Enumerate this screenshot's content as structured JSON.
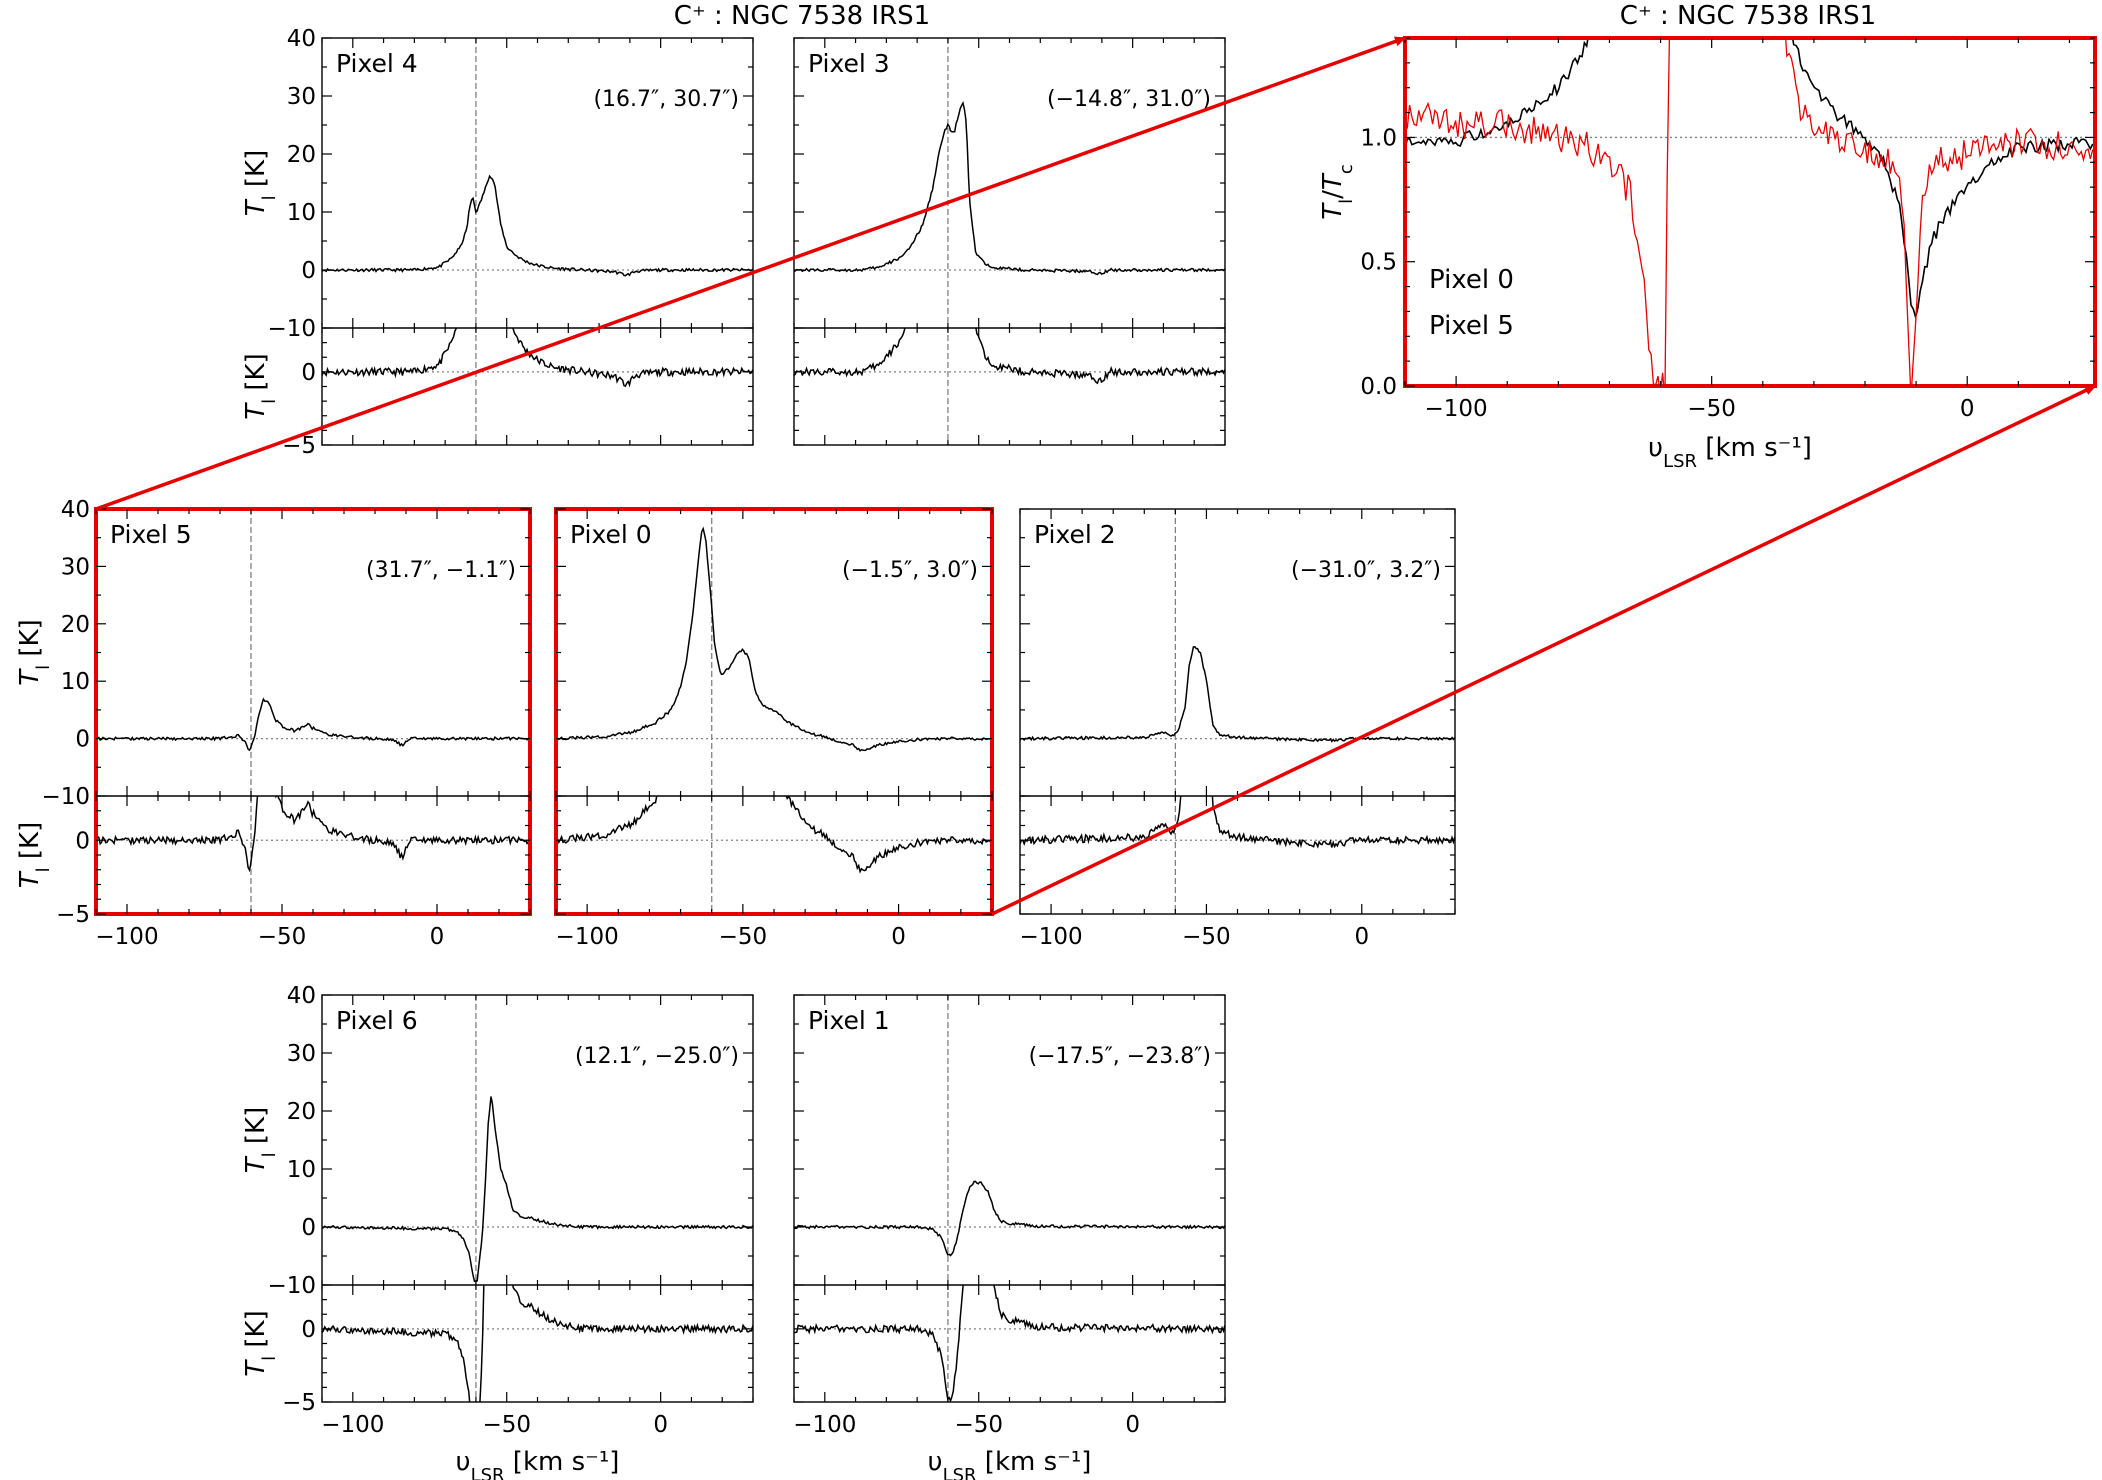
{
  "figure_title": "C⁺ : NGC 7538 IRS1",
  "inset_title": "C⁺ : NGC 7538 IRS1",
  "xlabel_prefix": "υ",
  "xlabel_sub": "LSR",
  "xlabel_suffix": " [km s⁻¹]",
  "ylabel_T": "T",
  "ylabel_sub": "l",
  "ylabel_unit": " [K]",
  "inset_ylabel_num": "T",
  "inset_ylabel_den": "T",
  "inset_ylabel_sub_num": "l",
  "inset_ylabel_sub_den": "c",
  "colors": {
    "line": "#000000",
    "highlight": "#e60000",
    "guide": "#808080"
  },
  "chart_data": [
    {
      "type": "line",
      "name": "Pixel 4",
      "offset": "(16.7″, 30.7″)",
      "highlight": false,
      "xlim": [
        -110,
        30
      ],
      "ylim_top": [
        -10,
        40
      ],
      "ylim_bottom": [
        -5,
        3
      ],
      "xticks": [
        -100,
        -50,
        0
      ],
      "yticks_top": [
        -10,
        0,
        10,
        20,
        30,
        40
      ],
      "yticks_bottom": [
        -5,
        0
      ],
      "vline": -60,
      "profile": [
        [
          -110,
          0
        ],
        [
          -80,
          0
        ],
        [
          -72,
          0.5
        ],
        [
          -68,
          2
        ],
        [
          -65,
          4
        ],
        [
          -63,
          7
        ],
        [
          -62,
          11
        ],
        [
          -61,
          12.5
        ],
        [
          -60,
          10
        ],
        [
          -59,
          11
        ],
        [
          -57,
          14
        ],
        [
          -55.5,
          16.5
        ],
        [
          -54,
          15
        ],
        [
          -52,
          8
        ],
        [
          -50,
          4
        ],
        [
          -47,
          2.5
        ],
        [
          -44,
          1.5
        ],
        [
          -40,
          0.8
        ],
        [
          -35,
          0.3
        ],
        [
          -25,
          0
        ],
        [
          -15,
          -0.3
        ],
        [
          -11,
          -0.9
        ],
        [
          -8,
          -0.2
        ],
        [
          0,
          0
        ],
        [
          30,
          0
        ]
      ]
    },
    {
      "type": "line",
      "name": "Pixel 3",
      "offset": "(−14.8″, 31.0″)",
      "highlight": false,
      "xlim": [
        -110,
        30
      ],
      "ylim_top": [
        -10,
        40
      ],
      "ylim_bottom": [
        -5,
        3
      ],
      "xticks": [
        -100,
        -50,
        0
      ],
      "yticks_top": [
        -10,
        0,
        10,
        20,
        30,
        40
      ],
      "yticks_bottom": [
        -5,
        0
      ],
      "vline": -60,
      "profile": [
        [
          -110,
          0
        ],
        [
          -88,
          0
        ],
        [
          -82,
          0.5
        ],
        [
          -76,
          2
        ],
        [
          -72,
          4
        ],
        [
          -68,
          8
        ],
        [
          -65,
          14
        ],
        [
          -63,
          20
        ],
        [
          -61,
          24
        ],
        [
          -60,
          25
        ],
        [
          -59,
          24
        ],
        [
          -58,
          23.5
        ],
        [
          -56.5,
          27
        ],
        [
          -55,
          29
        ],
        [
          -54,
          25
        ],
        [
          -53,
          12
        ],
        [
          -51,
          3
        ],
        [
          -48,
          1
        ],
        [
          -44,
          0.4
        ],
        [
          -35,
          0
        ],
        [
          -15,
          -0.2
        ],
        [
          -11,
          -0.6
        ],
        [
          -7,
          0
        ],
        [
          30,
          0
        ]
      ]
    },
    {
      "type": "line",
      "name": "Pixel 5",
      "offset": "(31.7″, −1.1″)",
      "highlight": true,
      "xlim": [
        -110,
        30
      ],
      "ylim_top": [
        -10,
        40
      ],
      "ylim_bottom": [
        -5,
        3
      ],
      "xticks": [
        -100,
        -50,
        0
      ],
      "yticks_top": [
        -10,
        0,
        10,
        20,
        30,
        40
      ],
      "yticks_bottom": [
        -5,
        0
      ],
      "vline": -60,
      "profile": [
        [
          -110,
          0
        ],
        [
          -70,
          0
        ],
        [
          -64,
          0.5
        ],
        [
          -62,
          -0.5
        ],
        [
          -60.5,
          -2.2
        ],
        [
          -59,
          0
        ],
        [
          -57.5,
          4
        ],
        [
          -56,
          6.8
        ],
        [
          -54,
          6
        ],
        [
          -52,
          3.2
        ],
        [
          -49,
          1.8
        ],
        [
          -46,
          1.4
        ],
        [
          -44,
          1.8
        ],
        [
          -42,
          2.6
        ],
        [
          -40,
          1.8
        ],
        [
          -36,
          0.8
        ],
        [
          -30,
          0.3
        ],
        [
          -20,
          0
        ],
        [
          -14,
          -0.2
        ],
        [
          -11,
          -1.3
        ],
        [
          -9,
          0
        ],
        [
          0,
          0
        ],
        [
          30,
          0
        ]
      ]
    },
    {
      "type": "line",
      "name": "Pixel 0",
      "offset": "(−1.5″, 3.0″)",
      "highlight": true,
      "xlim": [
        -110,
        30
      ],
      "ylim_top": [
        -10,
        40
      ],
      "ylim_bottom": [
        -5,
        3
      ],
      "xticks": [
        -100,
        -50,
        0
      ],
      "yticks_top": [
        -10,
        0,
        10,
        20,
        30,
        40
      ],
      "yticks_bottom": [
        -5,
        0
      ],
      "vline": -60,
      "profile": [
        [
          -110,
          0
        ],
        [
          -95,
          0.3
        ],
        [
          -85,
          1.2
        ],
        [
          -78,
          2.8
        ],
        [
          -73,
          5
        ],
        [
          -70,
          9
        ],
        [
          -68,
          14
        ],
        [
          -66,
          22
        ],
        [
          -64.5,
          30
        ],
        [
          -63,
          37
        ],
        [
          -62,
          35
        ],
        [
          -60.5,
          26
        ],
        [
          -59,
          16
        ],
        [
          -57,
          11
        ],
        [
          -55,
          12
        ],
        [
          -52,
          14.5
        ],
        [
          -50,
          15.5
        ],
        [
          -48,
          14
        ],
        [
          -46,
          8
        ],
        [
          -44,
          6
        ],
        [
          -42,
          5.5
        ],
        [
          -40,
          5
        ],
        [
          -36,
          3
        ],
        [
          -30,
          1.2
        ],
        [
          -22,
          0
        ],
        [
          -15,
          -1
        ],
        [
          -12,
          -2.2
        ],
        [
          -10,
          -2
        ],
        [
          -6,
          -1
        ],
        [
          0,
          -0.5
        ],
        [
          10,
          0
        ],
        [
          30,
          0
        ]
      ]
    },
    {
      "type": "line",
      "name": "Pixel 2",
      "offset": "(−31.0″, 3.2″)",
      "highlight": false,
      "xlim": [
        -110,
        30
      ],
      "ylim_top": [
        -10,
        40
      ],
      "ylim_bottom": [
        -5,
        3
      ],
      "xticks": [
        -100,
        -50,
        0
      ],
      "yticks_top": [
        -10,
        0,
        10,
        20,
        30,
        40
      ],
      "yticks_bottom": [
        -5,
        0
      ],
      "vline": -60,
      "profile": [
        [
          -110,
          0
        ],
        [
          -70,
          0.2
        ],
        [
          -66,
          0.8
        ],
        [
          -63,
          1.2
        ],
        [
          -61,
          0.4
        ],
        [
          -59,
          1.5
        ],
        [
          -57,
          5
        ],
        [
          -55.5,
          13
        ],
        [
          -54,
          16.3
        ],
        [
          -52,
          15
        ],
        [
          -50,
          10
        ],
        [
          -48,
          2.5
        ],
        [
          -46,
          0.8
        ],
        [
          -42,
          0.3
        ],
        [
          -30,
          0
        ],
        [
          -12,
          -0.3
        ],
        [
          0,
          0
        ],
        [
          30,
          0
        ]
      ]
    },
    {
      "type": "line",
      "name": "Pixel 6",
      "offset": "(12.1″, −25.0″)",
      "highlight": false,
      "xlim": [
        -110,
        30
      ],
      "ylim_top": [
        -10,
        40
      ],
      "ylim_bottom": [
        -5,
        3
      ],
      "xticks": [
        -100,
        -50,
        0
      ],
      "yticks_top": [
        -10,
        0,
        10,
        20,
        30,
        40
      ],
      "yticks_bottom": [
        -5,
        0
      ],
      "vline": -60,
      "profile": [
        [
          -110,
          0
        ],
        [
          -70,
          -0.3
        ],
        [
          -66,
          -0.8
        ],
        [
          -64,
          -2
        ],
        [
          -62,
          -5
        ],
        [
          -60.5,
          -9.5
        ],
        [
          -59.5,
          -9
        ],
        [
          -58,
          -2
        ],
        [
          -57,
          7
        ],
        [
          -56,
          18
        ],
        [
          -55,
          23
        ],
        [
          -54,
          18
        ],
        [
          -52,
          10
        ],
        [
          -50,
          7
        ],
        [
          -48,
          3
        ],
        [
          -45,
          1.5
        ],
        [
          -43,
          1.8
        ],
        [
          -40,
          1.2
        ],
        [
          -35,
          0.5
        ],
        [
          -25,
          0
        ],
        [
          30,
          0
        ]
      ]
    },
    {
      "type": "line",
      "name": "Pixel 1",
      "offset": "(−17.5″, −23.8″)",
      "highlight": false,
      "xlim": [
        -110,
        30
      ],
      "ylim_top": [
        -10,
        40
      ],
      "ylim_bottom": [
        -5,
        3
      ],
      "xticks": [
        -100,
        -50,
        0
      ],
      "yticks_top": [
        -10,
        0,
        10,
        20,
        30,
        40
      ],
      "yticks_bottom": [
        -5,
        0
      ],
      "vline": -60,
      "profile": [
        [
          -110,
          0
        ],
        [
          -70,
          0
        ],
        [
          -65,
          -0.3
        ],
        [
          -62,
          -2
        ],
        [
          -60,
          -5
        ],
        [
          -58.5,
          -4.6
        ],
        [
          -57,
          -2
        ],
        [
          -55,
          3
        ],
        [
          -53,
          7
        ],
        [
          -51,
          7.8
        ],
        [
          -49,
          7.5
        ],
        [
          -47,
          6
        ],
        [
          -45,
          3
        ],
        [
          -43,
          1
        ],
        [
          -40,
          0.6
        ],
        [
          -30,
          0.1
        ],
        [
          30,
          0
        ]
      ]
    },
    {
      "type": "line",
      "name": "Inset: T_l/T_c",
      "highlight": true,
      "xlim": [
        -110,
        25
      ],
      "ylim": [
        0,
        1.4
      ],
      "xticks": [
        -100,
        -50,
        0
      ],
      "yticks": [
        0.0,
        0.5,
        1.0
      ],
      "hline": 1.0,
      "series": [
        {
          "name": "Pixel 0",
          "color": "#000000",
          "profile": [
            [
              -110,
              0.98
            ],
            [
              -100,
              0.98
            ],
            [
              -95,
              1.02
            ],
            [
              -90,
              1.05
            ],
            [
              -85,
              1.12
            ],
            [
              -80,
              1.2
            ],
            [
              -76,
              1.32
            ],
            [
              -73,
              1.45
            ],
            [
              -35,
              1.45
            ],
            [
              -32,
              1.28
            ],
            [
              -30,
              1.2
            ],
            [
              -25,
              1.08
            ],
            [
              -20,
              1.0
            ],
            [
              -16,
              0.9
            ],
            [
              -13,
              0.7
            ],
            [
              -11,
              0.35
            ],
            [
              -10,
              0.26
            ],
            [
              -9,
              0.4
            ],
            [
              -7,
              0.58
            ],
            [
              -4,
              0.7
            ],
            [
              0,
              0.8
            ],
            [
              5,
              0.9
            ],
            [
              10,
              0.96
            ],
            [
              25,
              0.98
            ]
          ]
        },
        {
          "name": "Pixel 5",
          "color": "#e60000",
          "profile": [
            [
              -110,
              1.1
            ],
            [
              -100,
              1.05
            ],
            [
              -90,
              1.05
            ],
            [
              -80,
              1.0
            ],
            [
              -75,
              0.97
            ],
            [
              -70,
              0.9
            ],
            [
              -66,
              0.78
            ],
            [
              -64,
              0.55
            ],
            [
              -62,
              0.1
            ],
            [
              -61,
              0.0
            ],
            [
              -59,
              0.0
            ],
            [
              -58.5,
              1.45
            ],
            [
              -36,
              1.45
            ],
            [
              -33,
              1.12
            ],
            [
              -30,
              1.05
            ],
            [
              -25,
              0.98
            ],
            [
              -20,
              0.95
            ],
            [
              -15,
              0.9
            ],
            [
              -13,
              0.82
            ],
            [
              -12,
              0.5
            ],
            [
              -11,
              0.0
            ],
            [
              -10,
              0.3
            ],
            [
              -9,
              0.75
            ],
            [
              -6,
              0.92
            ],
            [
              0,
              0.93
            ],
            [
              10,
              0.98
            ],
            [
              25,
              0.95
            ]
          ]
        }
      ],
      "legend": [
        "Pixel 0",
        "Pixel 5"
      ]
    }
  ]
}
